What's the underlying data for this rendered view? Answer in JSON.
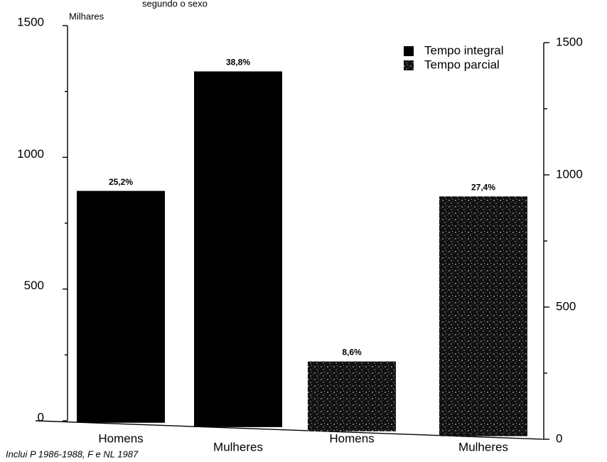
{
  "chart_data": {
    "type": "bar",
    "title": "segundo o sexo",
    "y_label": "Milhares",
    "note": "Inclui P 1986-1988, F e NL 1987",
    "categories": [
      "Homens",
      "Mulheres",
      "Homens",
      "Mulheres"
    ],
    "series": [
      {
        "name": "Tempo integral",
        "color": "#000000",
        "pattern": "solid",
        "values": [
          880,
          1350,
          null,
          null
        ],
        "annotations": [
          "25,2%",
          "38,8%",
          null,
          null
        ]
      },
      {
        "name": "Tempo parcial",
        "color": "#111111",
        "pattern": "speckle",
        "values": [
          null,
          null,
          265,
          910
        ],
        "annotations": [
          null,
          null,
          "8,6%",
          "27,4%"
        ]
      }
    ],
    "ylim": [
      0,
      1500
    ],
    "yticks": [
      0,
      500,
      1000,
      1500
    ],
    "yminorticks": [
      250,
      750,
      1250
    ],
    "y2lim": [
      0,
      1500
    ],
    "y2ticks": [
      0,
      500,
      1000,
      1500
    ],
    "y2minorticks": [
      250,
      750,
      1250
    ],
    "legend": "top-right",
    "grid": false
  }
}
